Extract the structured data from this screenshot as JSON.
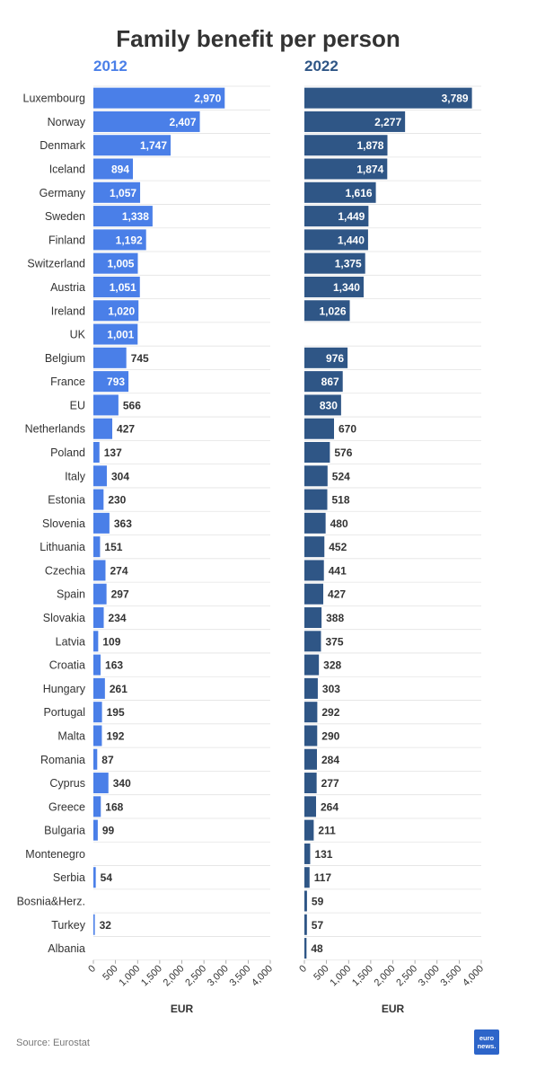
{
  "colors": {
    "bar_2012": "#4a7fe8",
    "bar_2022": "#2f5686",
    "grid": "#e3e3e3",
    "text": "#333333"
  },
  "source": "Source: Eurostat",
  "logo": {
    "line1": "euro",
    "line2": "news."
  },
  "chart_data": {
    "type": "bar",
    "orientation": "horizontal",
    "title": "Family benefit per person",
    "xlabel": "EUR",
    "xlim": [
      0,
      4000
    ],
    "xticks": [
      0,
      500,
      1000,
      1500,
      2000,
      2500,
      3000,
      3500,
      4000
    ],
    "xtick_labels": [
      "0",
      "500",
      "1,000",
      "1,500",
      "2,000",
      "2,500",
      "3,000",
      "3,500",
      "4,000"
    ],
    "categories": [
      "Luxembourg",
      "Norway",
      "Denmark",
      "Iceland",
      "Germany",
      "Sweden",
      "Finland",
      "Switzerland",
      "Austria",
      "Ireland",
      "UK",
      "Belgium",
      "France",
      "EU",
      "Netherlands",
      "Poland",
      "Italy",
      "Estonia",
      "Slovenia",
      "Lithuania",
      "Czechia",
      "Spain",
      "Slovakia",
      "Latvia",
      "Croatia",
      "Hungary",
      "Portugal",
      "Malta",
      "Romania",
      "Cyprus",
      "Greece",
      "Bulgaria",
      "Montenegro",
      "Serbia",
      "Bosnia&Herz.",
      "Turkey",
      "Albania"
    ],
    "series": [
      {
        "name": "2012",
        "values": [
          2970,
          2407,
          1747,
          894,
          1057,
          1338,
          1192,
          1005,
          1051,
          1020,
          1001,
          745,
          793,
          566,
          427,
          137,
          304,
          230,
          363,
          151,
          274,
          297,
          234,
          109,
          163,
          261,
          195,
          192,
          87,
          340,
          168,
          99,
          null,
          54,
          null,
          32,
          null
        ],
        "labels": [
          "2,970",
          "2,407",
          "1,747",
          "894",
          "1,057",
          "1,338",
          "1,192",
          "1,005",
          "1,051",
          "1,020",
          "1,001",
          "745",
          "793",
          "566",
          "427",
          "137",
          "304",
          "230",
          "363",
          "151",
          "274",
          "297",
          "234",
          "109",
          "163",
          "261",
          "195",
          "192",
          "87",
          "340",
          "168",
          "99",
          "",
          "54",
          "",
          "32",
          ""
        ]
      },
      {
        "name": "2022",
        "values": [
          3789,
          2277,
          1878,
          1874,
          1616,
          1449,
          1440,
          1375,
          1340,
          1026,
          null,
          976,
          867,
          830,
          670,
          576,
          524,
          518,
          480,
          452,
          441,
          427,
          388,
          375,
          328,
          303,
          292,
          290,
          284,
          277,
          264,
          211,
          131,
          117,
          59,
          57,
          48
        ],
        "labels": [
          "3,789",
          "2,277",
          "1,878",
          "1,874",
          "1,616",
          "1,449",
          "1,440",
          "1,375",
          "1,340",
          "1,026",
          "",
          "976",
          "867",
          "830",
          "670",
          "576",
          "524",
          "518",
          "480",
          "452",
          "441",
          "427",
          "388",
          "375",
          "328",
          "303",
          "292",
          "290",
          "284",
          "277",
          "264",
          "211",
          "131",
          "117",
          "59",
          "57",
          "48"
        ]
      }
    ]
  }
}
